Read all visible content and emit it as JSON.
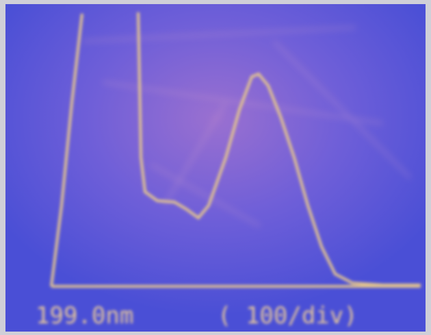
{
  "screen": {
    "x_start_label": "199.0nm",
    "x_scale_label": "( 100/div)"
  }
}
